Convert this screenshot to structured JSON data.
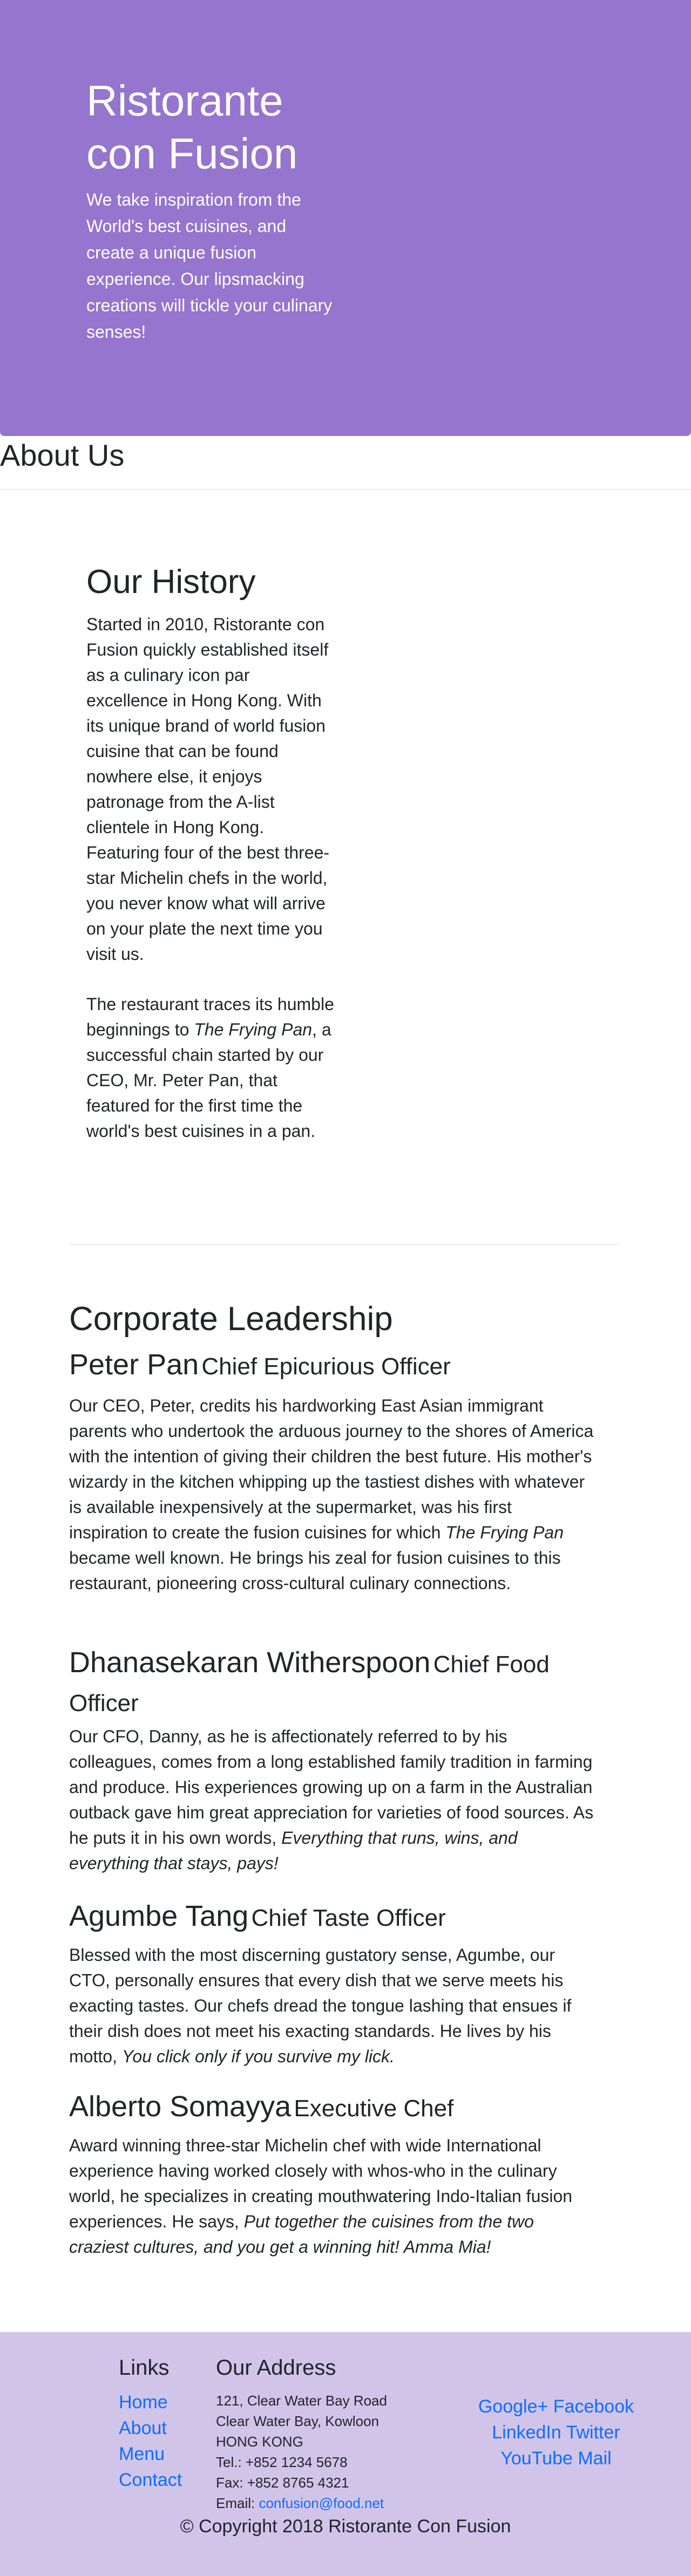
{
  "hero": {
    "title": "Ristorante con Fusion",
    "tagline": "We take inspiration from the World's best cuisines, and create a unique fusion experience. Our lipsmacking creations will tickle your culinary senses!"
  },
  "about": {
    "title": "About Us"
  },
  "history": {
    "title": "Our History",
    "p1": "Started in 2010, Ristorante con Fusion quickly established itself as a culinary icon par excellence in Hong Kong. With its unique brand of world fusion cuisine that can be found nowhere else, it enjoys patronage from the A-list clientele in Hong Kong. Featuring four of the best three-star Michelin chefs in the world, you never know what will arrive on your plate the next time you visit us.",
    "p2_before": "The restaurant traces its humble beginnings to ",
    "p2_em": "The Frying Pan",
    "p2_after": ", a successful chain started by our CEO, Mr. Peter Pan, that featured for the first time the world's best cuisines in a pan."
  },
  "leadership": {
    "title": "Corporate Leadership",
    "leaders": [
      {
        "name": "Peter Pan",
        "role": "Chief Epicurious Officer",
        "desc_before": "Our CEO, Peter, credits his hardworking East Asian immigrant parents who undertook the arduous journey to the shores of America with the intention of giving their children the best future. His mother's wizardy in the kitchen whipping up the tastiest dishes with whatever is available inexpensively at the supermarket, was his first inspiration to create the fusion cuisines for which ",
        "desc_em": "The Frying Pan",
        "desc_after": " became well known. He brings his zeal for fusion cuisines to this restaurant, pioneering cross-cultural culinary connections."
      },
      {
        "name": "Dhanasekaran Witherspoon",
        "role": "Chief Food Officer",
        "desc_before": "Our CFO, Danny, as he is affectionately referred to by his colleagues, comes from a long established family tradition in farming and produce. His experiences growing up on a farm in the Australian outback gave him great appreciation for varieties of food sources. As he puts it in his own words, ",
        "desc_em": "Everything that runs, wins, and everything that stays, pays!",
        "desc_after": ""
      },
      {
        "name": "Agumbe Tang",
        "role": "Chief Taste Officer",
        "desc_before": "Blessed with the most discerning gustatory sense, Agumbe, our CTO, personally ensures that every dish that we serve meets his exacting tastes. Our chefs dread the tongue lashing that ensues if their dish does not meet his exacting standards. He lives by his motto, ",
        "desc_em": "You click only if you survive my lick.",
        "desc_after": ""
      },
      {
        "name": "Alberto Somayya",
        "role": "Executive Chef",
        "desc_before": "Award winning three-star Michelin chef with wide International experience having worked closely with whos-who in the culinary world, he specializes in creating mouthwatering Indo-Italian fusion experiences. He says, ",
        "desc_em": "Put together the cuisines from the two craziest cultures, and you get a winning hit! Amma Mia!",
        "desc_after": ""
      }
    ]
  },
  "footer": {
    "links_title": "Links",
    "links": [
      "Home",
      "About",
      "Menu",
      "Contact"
    ],
    "address_title": "Our Address",
    "address_lines": [
      "121, Clear Water Bay Road",
      "Clear Water Bay, Kowloon",
      "HONG KONG",
      "Tel.: +852 1234 5678",
      "Fax: +852 8765 4321"
    ],
    "email_label": "Email: ",
    "email": "confusion@food.net",
    "social_row1": "Google+ Facebook",
    "social_row2": "LinkedIn Twitter",
    "social_row3": "YouTube Mail",
    "copyright": "© Copyright 2018 Ristorante Con Fusion"
  },
  "colors": {
    "hero_bg": "#9575cd",
    "footer_bg": "#d1c4e9",
    "link": "#0d6efd",
    "text": "#212529"
  }
}
